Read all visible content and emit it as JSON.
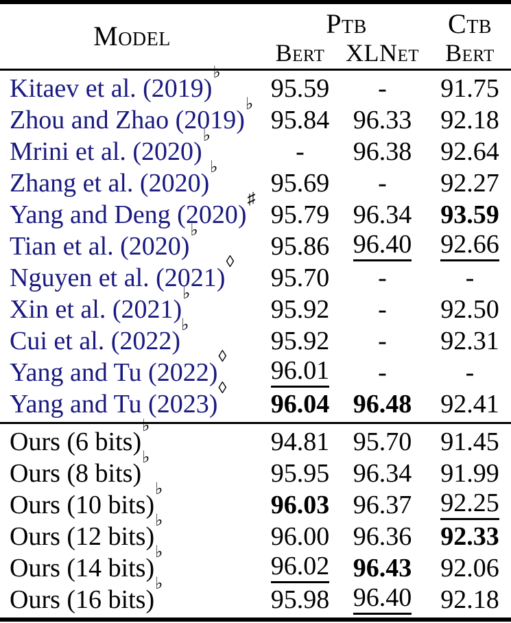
{
  "colors": {
    "citation_link": "#191980",
    "text": "#000000",
    "rule": "#000000"
  },
  "header": {
    "model_label": "Model",
    "group_ptb": "Ptb",
    "group_ctb": "Ctb",
    "col_ptb_bert": "Bert",
    "col_ptb_xlnet": "XLNet",
    "col_ctb_bert": "Bert"
  },
  "footnote_markers": {
    "flat": "♭",
    "sharp": "♯",
    "diamond": "◊"
  },
  "sections": [
    {
      "name": "prior-work",
      "rows": [
        {
          "model": "Kitaev et al. (2019)",
          "sup": "♭",
          "link": true,
          "values": [
            {
              "text": "95.59"
            },
            {
              "text": "-"
            },
            {
              "text": "91.75"
            }
          ]
        },
        {
          "model": "Zhou and Zhao (2019)",
          "sup": "♭",
          "link": true,
          "values": [
            {
              "text": "95.84"
            },
            {
              "text": "96.33"
            },
            {
              "text": "92.18"
            }
          ]
        },
        {
          "model": "Mrini et al. (2020)",
          "sup": "♭",
          "link": true,
          "values": [
            {
              "text": "-"
            },
            {
              "text": "96.38"
            },
            {
              "text": "92.64"
            }
          ]
        },
        {
          "model": "Zhang et al. (2020)",
          "sup": "♭",
          "link": true,
          "values": [
            {
              "text": "95.69"
            },
            {
              "text": "-"
            },
            {
              "text": "92.27"
            }
          ]
        },
        {
          "model": "Yang and Deng (2020)",
          "sup": "♯",
          "link": true,
          "values": [
            {
              "text": "95.79"
            },
            {
              "text": "96.34"
            },
            {
              "text": "93.59",
              "bold": true
            }
          ]
        },
        {
          "model": "Tian et al. (2020)",
          "sup": "♭",
          "link": true,
          "values": [
            {
              "text": "95.86"
            },
            {
              "text": "96.40",
              "underline": true
            },
            {
              "text": "92.66",
              "underline": true
            }
          ]
        },
        {
          "model": "Nguyen et al. (2021)",
          "sup": "◊",
          "link": true,
          "values": [
            {
              "text": "95.70"
            },
            {
              "text": "-"
            },
            {
              "text": "-"
            }
          ]
        },
        {
          "model": "Xin et al. (2021)",
          "sup": "♭",
          "link": true,
          "values": [
            {
              "text": "95.92"
            },
            {
              "text": "-"
            },
            {
              "text": "92.50"
            }
          ]
        },
        {
          "model": "Cui et al. (2022)",
          "sup": "♭",
          "link": true,
          "values": [
            {
              "text": "95.92"
            },
            {
              "text": "-"
            },
            {
              "text": "92.31"
            }
          ]
        },
        {
          "model": "Yang and Tu (2022)",
          "sup": "◊",
          "link": true,
          "values": [
            {
              "text": "96.01",
              "underline": true
            },
            {
              "text": "-"
            },
            {
              "text": "-"
            }
          ]
        },
        {
          "model": "Yang and Tu (2023)",
          "sup": "◊",
          "link": true,
          "values": [
            {
              "text": "96.04",
              "bold": true
            },
            {
              "text": "96.48",
              "bold": true
            },
            {
              "text": "92.41"
            }
          ]
        }
      ]
    },
    {
      "name": "ours",
      "rows": [
        {
          "model": "Ours (6 bits)",
          "sup": "♭",
          "link": false,
          "values": [
            {
              "text": "94.81"
            },
            {
              "text": "95.70"
            },
            {
              "text": "91.45"
            }
          ]
        },
        {
          "model": "Ours (8 bits)",
          "sup": "♭",
          "link": false,
          "values": [
            {
              "text": "95.95"
            },
            {
              "text": "96.34"
            },
            {
              "text": "91.99"
            }
          ]
        },
        {
          "model": "Ours (10 bits)",
          "sup": "♭",
          "link": false,
          "values": [
            {
              "text": "96.03",
              "bold": true
            },
            {
              "text": "96.37"
            },
            {
              "text": "92.25",
              "underline": true
            }
          ]
        },
        {
          "model": "Ours (12 bits)",
          "sup": "♭",
          "link": false,
          "values": [
            {
              "text": "96.00"
            },
            {
              "text": "96.36"
            },
            {
              "text": "92.33",
              "bold": true
            }
          ]
        },
        {
          "model": "Ours (14 bits)",
          "sup": "♭",
          "link": false,
          "values": [
            {
              "text": "96.02",
              "underline": true
            },
            {
              "text": "96.43",
              "bold": true
            },
            {
              "text": "92.06"
            }
          ]
        },
        {
          "model": "Ours (16 bits)",
          "sup": "♭",
          "link": false,
          "values": [
            {
              "text": "95.98"
            },
            {
              "text": "96.40",
              "underline": true
            },
            {
              "text": "92.18"
            }
          ]
        }
      ]
    }
  ]
}
